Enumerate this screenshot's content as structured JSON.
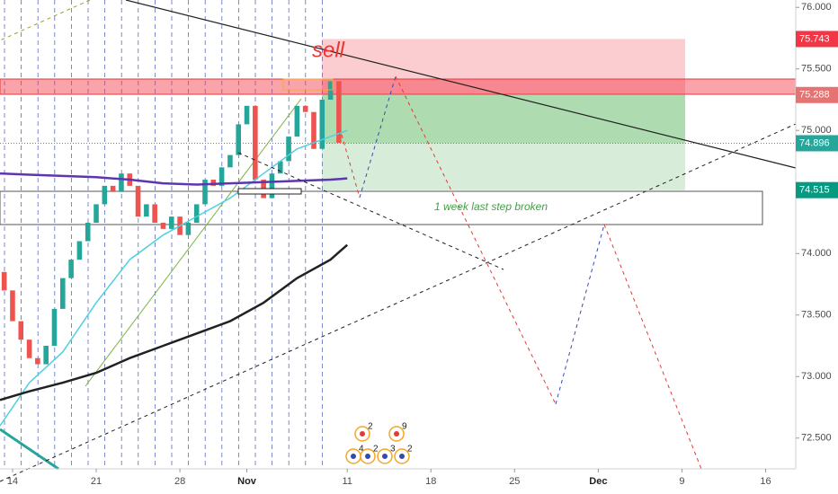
{
  "chart_data": {
    "type": "candlestick",
    "xlim": [
      -0.75,
      46.8
    ],
    "ylim": [
      72.25,
      76.06
    ],
    "xticks": [
      {
        "value": 0,
        "label": "14"
      },
      {
        "value": 5,
        "label": "21"
      },
      {
        "value": 10,
        "label": "28"
      },
      {
        "value": 14,
        "label": "Nov"
      },
      {
        "value": 20,
        "label": "11"
      },
      {
        "value": 25,
        "label": "18"
      },
      {
        "value": 30,
        "label": "25"
      },
      {
        "value": 35,
        "label": "Dec"
      },
      {
        "value": 40,
        "label": "9"
      },
      {
        "value": 45,
        "label": "16"
      }
    ],
    "yticks": [
      {
        "value": 72.5,
        "label": "72.500"
      },
      {
        "value": 73,
        "label": "73.000"
      },
      {
        "value": 73.5,
        "label": "73.500"
      },
      {
        "value": 74,
        "label": "74.000"
      },
      {
        "value": 74.5,
        "label": "74.500"
      },
      {
        "value": 75,
        "label": "75.000"
      },
      {
        "value": 75.5,
        "label": "75.500"
      },
      {
        "value": 76,
        "label": "76.000"
      }
    ],
    "candles": {
      "up_color": "#26a69a",
      "down_color": "#ef5350",
      "x": [
        -0.5,
        0,
        0.5,
        1,
        1.5,
        2,
        2.5,
        3,
        3.5,
        4,
        4.5,
        5,
        5.5,
        6,
        6.5,
        7,
        7.5,
        8,
        8.5,
        9,
        9.5,
        10,
        10.5,
        11,
        11.5,
        12,
        12.5,
        13,
        13.5,
        14,
        14.5,
        15,
        15.5,
        16,
        16.5,
        17,
        17.5,
        18,
        18.5,
        19,
        19.5
      ],
      "open": [
        73.85,
        73.7,
        73.45,
        73.3,
        73.15,
        73.1,
        73.25,
        73.55,
        73.8,
        73.95,
        74.1,
        74.25,
        74.4,
        74.55,
        74.5,
        74.65,
        74.55,
        74.3,
        74.4,
        74.25,
        74.2,
        74.3,
        74.15,
        74.25,
        74.4,
        74.6,
        74.55,
        74.7,
        74.8,
        75.05,
        75.2,
        74.6,
        74.45,
        74.65,
        74.75,
        74.95,
        75.2,
        75.15,
        74.85,
        75.25,
        75.4
      ],
      "close": [
        73.7,
        73.45,
        73.3,
        73.15,
        73.1,
        73.25,
        73.55,
        73.8,
        73.95,
        74.1,
        74.25,
        74.4,
        74.55,
        74.5,
        74.65,
        74.55,
        74.3,
        74.4,
        74.25,
        74.2,
        74.3,
        74.15,
        74.25,
        74.4,
        74.6,
        74.55,
        74.7,
        74.8,
        75.05,
        75.2,
        74.6,
        74.45,
        74.65,
        74.75,
        74.95,
        75.2,
        75.15,
        74.85,
        75.25,
        75.4,
        74.9
      ]
    },
    "series": [
      {
        "color": "#4dd0e1",
        "x": [
          -0.75,
          1,
          3,
          5,
          7,
          9,
          11,
          13,
          15,
          17,
          19,
          20
        ],
        "values": [
          72.6,
          72.95,
          73.2,
          73.6,
          73.95,
          74.15,
          74.3,
          74.45,
          74.65,
          74.85,
          74.95,
          75.0
        ]
      },
      {
        "color": "#5e35b1",
        "x": [
          -0.75,
          1,
          3,
          5,
          7,
          9,
          11,
          13,
          15,
          17,
          19,
          20
        ],
        "values": [
          74.65,
          74.64,
          74.63,
          74.62,
          74.6,
          74.57,
          74.56,
          74.57,
          74.58,
          74.59,
          74.6,
          74.61
        ]
      },
      {
        "color": "#212121",
        "x": [
          -0.75,
          1,
          3,
          5,
          7,
          9,
          11,
          13,
          15,
          17,
          19,
          20
        ],
        "values": [
          72.81,
          72.88,
          72.95,
          73.03,
          73.15,
          73.25,
          73.35,
          73.45,
          73.6,
          73.8,
          73.95,
          74.07
        ]
      }
    ],
    "price_labels": [
      {
        "value": 75.743,
        "color": "#f23645"
      },
      {
        "value": 75.288,
        "color": "#e57373"
      },
      {
        "value": 74.896,
        "color": "#26a69a"
      },
      {
        "value": 74.515,
        "color": "#089981"
      }
    ],
    "annotations": [
      "sell",
      "1 week last step broken"
    ],
    "event_markers": [
      "2",
      "9",
      "4",
      "2",
      "3",
      "2"
    ]
  }
}
